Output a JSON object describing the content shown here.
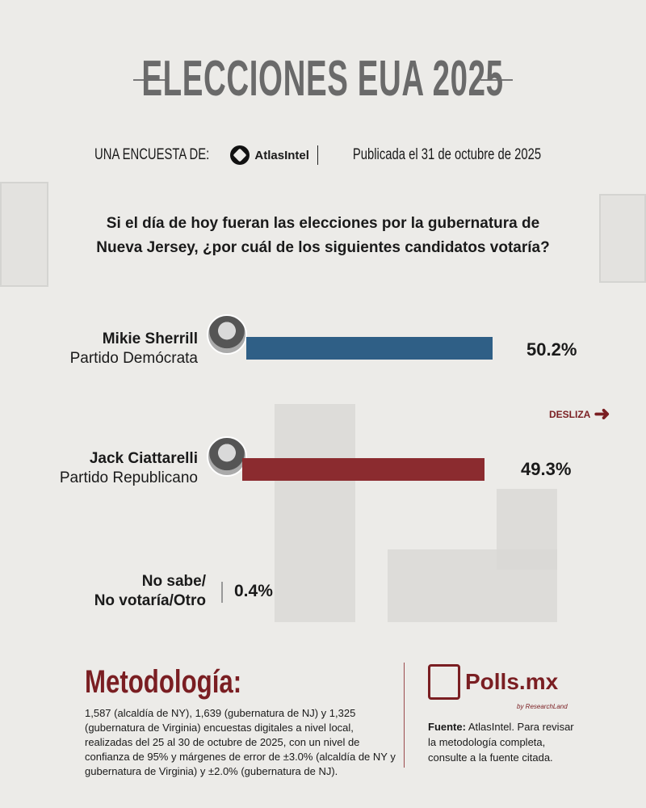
{
  "header": {
    "title": "ELECCIONES EUA 2025",
    "survey_by": "UNA ENCUESTA DE:",
    "pollster": "AtlasIntel",
    "published": "Publicada el 31 de octubre de 2025"
  },
  "question": {
    "line1": "Si el día de hoy fueran las elecciones por la gubernatura de",
    "line2": "Nueva Jersey, ¿por cuál de los siguientes candidatos votaría?"
  },
  "swipe_label": "DESLIZA",
  "chart_data": {
    "type": "bar",
    "orientation": "horizontal",
    "categories": [
      "Mikie Sherrill",
      "Jack Ciattarelli",
      "No sabe/ No votaría/Otro"
    ],
    "parties": [
      "Partido Demócrata",
      "Partido Republicano",
      ""
    ],
    "values": [
      50.2,
      49.3,
      0.4
    ],
    "labels": [
      "50.2%",
      "49.3%",
      "0.4%"
    ],
    "colors": [
      "#2f5f86",
      "#8b2b2f",
      "#999999"
    ],
    "unit": "%"
  },
  "other_label": {
    "line1": "No sabe/",
    "line2": "No votaría/Otro"
  },
  "methodology": {
    "title": "Metodología:",
    "text": "1,587 (alcaldía de NY), 1,639 (gubernatura de NJ) y 1,325 (gubernatura de Virginia) encuestas digitales a nivel local, realizadas del 25 al 30 de octubre de 2025, con un nivel de confianza de 95% y márgenes de error de ±3.0% (alcaldía de NY y gubernatura de Virginia) y ±2.0% (gubernatura de NJ)."
  },
  "brand": {
    "name": "Polls.mx",
    "tagline": "by ResearchLand"
  },
  "source": {
    "label": "Fuente:",
    "text": " AtlasIntel. Para revisar la metodología completa, consulte a la fuente citada."
  }
}
